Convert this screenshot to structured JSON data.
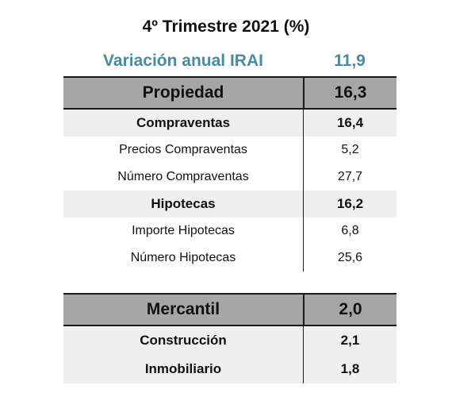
{
  "title": "4º Trimestre 2021 (%)",
  "annual": {
    "label": "Variación anual IRAI",
    "value": "11,9",
    "color": "#4a8ba0"
  },
  "propiedad": {
    "label": "Propiedad",
    "value": "16,3",
    "rows": [
      {
        "label": "Compraventas",
        "value": "16,4",
        "type": "sub"
      },
      {
        "label": "Precios Compraventas",
        "value": "5,2",
        "type": "detail"
      },
      {
        "label": "Número Compraventas",
        "value": "27,7",
        "type": "detail"
      },
      {
        "label": "Hipotecas",
        "value": "16,2",
        "type": "sub"
      },
      {
        "label": "Importe Hipotecas",
        "value": "6,8",
        "type": "detail"
      },
      {
        "label": "Número Hipotecas",
        "value": "25,6",
        "type": "detail"
      }
    ]
  },
  "mercantil": {
    "label": "Mercantil",
    "value": "2,0",
    "rows": [
      {
        "label": "Construcción",
        "value": "2,1",
        "type": "sub"
      },
      {
        "label": "Inmobiliario",
        "value": "1,8",
        "type": "sub"
      }
    ]
  },
  "colors": {
    "header_bg": "#a6a6a6",
    "sub_bg": "#efefef",
    "accent": "#4a8ba0"
  }
}
